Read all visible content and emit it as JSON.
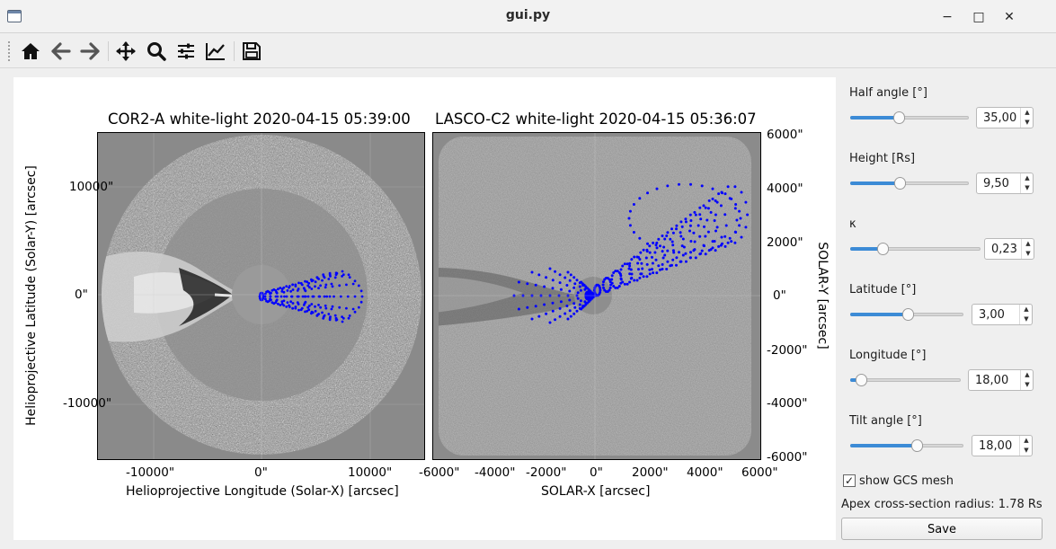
{
  "window": {
    "title": "gui.py",
    "minimize": "−",
    "maximize": "□",
    "close": "✕"
  },
  "toolbar": {
    "buttons": [
      {
        "icon": "home-icon"
      },
      {
        "icon": "back-icon"
      },
      {
        "icon": "forward-icon"
      },
      {
        "icon": "pan-icon"
      },
      {
        "icon": "zoom-icon"
      },
      {
        "icon": "configure-subplots-icon"
      },
      {
        "icon": "edit-axis-icon"
      },
      {
        "icon": "save-figure-icon"
      }
    ]
  },
  "plots": {
    "left": {
      "title": "COR2-A white-light 2020-04-15 05:39:00",
      "xlabel": "Helioprojective Longitude (Solar-X) [arcsec]",
      "ylabel": "Helioprojective Latitude (Solar-Y) [arcsec]",
      "xticks": [
        "-10000\"",
        "0\"",
        "10000\""
      ],
      "yticks": [
        "10000\"",
        "0\"",
        "-10000\""
      ]
    },
    "right": {
      "title": "LASCO-C2 white-light 2020-04-15 05:36:07",
      "xlabel": "SOLAR-X [arcsec]",
      "ylabel": "SOLAR-Y [arcsec]",
      "xticks": [
        "-6000\"",
        "-4000\"",
        "-2000\"",
        "0\"",
        "2000\"",
        "4000\"",
        "6000\""
      ],
      "yticks": [
        "6000\"",
        "4000\"",
        "2000\"",
        "0\"",
        "-2000\"",
        "-4000\"",
        "-6000\""
      ]
    },
    "mesh_color": "#0000ff"
  },
  "panel": {
    "params": [
      {
        "label": "Half angle [°]",
        "value": "35,00",
        "fraction": 0.4
      },
      {
        "label": "Height [Rs]",
        "value": "9,50",
        "fraction": 0.41
      },
      {
        "label": "κ",
        "value": "0,23",
        "fraction": 0.23
      },
      {
        "label": "Latitude [°]",
        "value": "3,00",
        "fraction": 0.51
      },
      {
        "label": "Longitude [°]",
        "value": "18,00",
        "fraction": 0.05
      },
      {
        "label": "Tilt angle [°]",
        "value": "18,00",
        "fraction": 0.6
      }
    ],
    "show_mesh_label": "show GCS mesh",
    "show_mesh_checked": true,
    "apex_text": "Apex cross-section radius: 1.78 Rs",
    "save_label": "Save"
  },
  "colors": {
    "accent": "#3c8bd6",
    "image_gray": "#8a8a8a"
  }
}
